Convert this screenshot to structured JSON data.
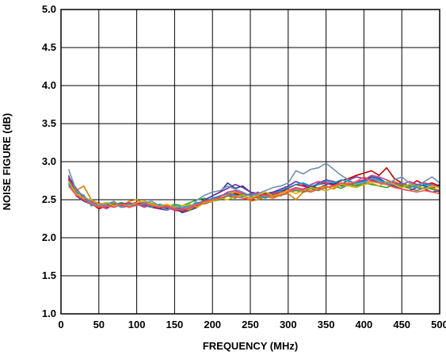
{
  "chart_data": {
    "type": "line",
    "title": "",
    "xlabel": "FREQUENCY (MHz)",
    "ylabel": "NOISE FIGURE (dB)",
    "xlim": [
      0,
      500
    ],
    "ylim": [
      1.0,
      5.0
    ],
    "xticks": [
      "0",
      "50",
      "100",
      "150",
      "200",
      "250",
      "300",
      "350",
      "400",
      "450",
      "500"
    ],
    "yticks": [
      "1.0",
      "1.5",
      "2.0",
      "2.5",
      "3.0",
      "3.5",
      "4.0",
      "4.5",
      "5.0"
    ],
    "grid": true,
    "legend": "none",
    "x": [
      10,
      20,
      30,
      40,
      50,
      60,
      70,
      80,
      90,
      100,
      110,
      120,
      130,
      140,
      150,
      160,
      170,
      180,
      190,
      200,
      210,
      220,
      230,
      240,
      250,
      260,
      270,
      280,
      290,
      300,
      310,
      320,
      330,
      340,
      350,
      360,
      370,
      380,
      390,
      400,
      410,
      420,
      430,
      440,
      450,
      460,
      470,
      480,
      490,
      500
    ],
    "series": [
      {
        "color": "#c00000",
        "values": [
          2.78,
          2.6,
          2.55,
          2.45,
          2.38,
          2.42,
          2.45,
          2.4,
          2.42,
          2.45,
          2.44,
          2.4,
          2.38,
          2.42,
          2.36,
          2.35,
          2.38,
          2.42,
          2.45,
          2.48,
          2.52,
          2.55,
          2.58,
          2.55,
          2.52,
          2.55,
          2.58,
          2.56,
          2.6,
          2.65,
          2.7,
          2.68,
          2.66,
          2.7,
          2.72,
          2.7,
          2.75,
          2.78,
          2.82,
          2.85,
          2.88,
          2.82,
          2.92,
          2.78,
          2.72,
          2.68,
          2.75,
          2.7,
          2.72,
          2.68
        ]
      },
      {
        "color": "#1f3f9f",
        "values": [
          2.8,
          2.65,
          2.52,
          2.48,
          2.42,
          2.45,
          2.42,
          2.44,
          2.4,
          2.43,
          2.46,
          2.42,
          2.4,
          2.38,
          2.4,
          2.33,
          2.36,
          2.4,
          2.5,
          2.55,
          2.6,
          2.72,
          2.65,
          2.68,
          2.6,
          2.58,
          2.55,
          2.6,
          2.62,
          2.6,
          2.64,
          2.62,
          2.68,
          2.65,
          2.7,
          2.72,
          2.68,
          2.7,
          2.72,
          2.75,
          2.8,
          2.78,
          2.72,
          2.7,
          2.68,
          2.66,
          2.7,
          2.68,
          2.65,
          2.7
        ]
      },
      {
        "color": "#e07b00",
        "values": [
          2.75,
          2.62,
          2.68,
          2.5,
          2.45,
          2.44,
          2.46,
          2.42,
          2.48,
          2.5,
          2.45,
          2.43,
          2.4,
          2.42,
          2.38,
          2.4,
          2.36,
          2.45,
          2.48,
          2.5,
          2.55,
          2.58,
          2.6,
          2.56,
          2.48,
          2.5,
          2.54,
          2.52,
          2.56,
          2.58,
          2.5,
          2.6,
          2.62,
          2.66,
          2.68,
          2.64,
          2.7,
          2.72,
          2.68,
          2.7,
          2.75,
          2.72,
          2.7,
          2.74,
          2.7,
          2.66,
          2.68,
          2.64,
          2.66,
          2.62
        ]
      },
      {
        "color": "#2e9e2e",
        "values": [
          2.72,
          2.58,
          2.5,
          2.46,
          2.4,
          2.42,
          2.44,
          2.46,
          2.44,
          2.42,
          2.48,
          2.45,
          2.42,
          2.4,
          2.44,
          2.42,
          2.46,
          2.5,
          2.52,
          2.48,
          2.5,
          2.55,
          2.52,
          2.58,
          2.55,
          2.52,
          2.56,
          2.58,
          2.55,
          2.6,
          2.62,
          2.6,
          2.65,
          2.62,
          2.66,
          2.68,
          2.65,
          2.7,
          2.68,
          2.72,
          2.7,
          2.68,
          2.66,
          2.7,
          2.68,
          2.65,
          2.62,
          2.66,
          2.64,
          2.6
        ]
      },
      {
        "color": "#7030a0",
        "values": [
          2.82,
          2.55,
          2.48,
          2.44,
          2.46,
          2.4,
          2.42,
          2.45,
          2.43,
          2.47,
          2.44,
          2.42,
          2.38,
          2.36,
          2.4,
          2.37,
          2.4,
          2.44,
          2.5,
          2.55,
          2.6,
          2.65,
          2.7,
          2.66,
          2.6,
          2.56,
          2.58,
          2.6,
          2.64,
          2.68,
          2.74,
          2.7,
          2.66,
          2.72,
          2.76,
          2.74,
          2.7,
          2.76,
          2.8,
          2.78,
          2.76,
          2.74,
          2.7,
          2.68,
          2.64,
          2.62,
          2.66,
          2.64,
          2.6,
          2.62
        ]
      },
      {
        "color": "#00a0c0",
        "values": [
          2.7,
          2.6,
          2.56,
          2.42,
          2.44,
          2.46,
          2.44,
          2.4,
          2.45,
          2.44,
          2.42,
          2.4,
          2.44,
          2.42,
          2.38,
          2.4,
          2.42,
          2.46,
          2.48,
          2.52,
          2.55,
          2.58,
          2.56,
          2.54,
          2.58,
          2.55,
          2.52,
          2.58,
          2.62,
          2.66,
          2.7,
          2.72,
          2.68,
          2.7,
          2.74,
          2.72,
          2.76,
          2.74,
          2.72,
          2.74,
          2.78,
          2.76,
          2.72,
          2.7,
          2.72,
          2.68,
          2.66,
          2.7,
          2.68,
          2.66
        ]
      },
      {
        "color": "#c83c8c",
        "values": [
          2.76,
          2.64,
          2.54,
          2.48,
          2.42,
          2.38,
          2.44,
          2.42,
          2.46,
          2.44,
          2.4,
          2.44,
          2.42,
          2.4,
          2.36,
          2.38,
          2.4,
          2.42,
          2.46,
          2.5,
          2.54,
          2.6,
          2.62,
          2.58,
          2.56,
          2.6,
          2.55,
          2.58,
          2.6,
          2.62,
          2.66,
          2.64,
          2.7,
          2.74,
          2.72,
          2.68,
          2.72,
          2.7,
          2.74,
          2.76,
          2.82,
          2.8,
          2.76,
          2.72,
          2.7,
          2.74,
          2.7,
          2.72,
          2.7,
          2.66
        ]
      },
      {
        "color": "#d4b000",
        "values": [
          2.74,
          2.58,
          2.52,
          2.5,
          2.44,
          2.46,
          2.42,
          2.44,
          2.42,
          2.46,
          2.48,
          2.44,
          2.42,
          2.44,
          2.4,
          2.42,
          2.44,
          2.4,
          2.46,
          2.48,
          2.52,
          2.5,
          2.54,
          2.56,
          2.52,
          2.56,
          2.6,
          2.55,
          2.58,
          2.62,
          2.58,
          2.62,
          2.66,
          2.64,
          2.62,
          2.66,
          2.7,
          2.68,
          2.66,
          2.7,
          2.72,
          2.68,
          2.74,
          2.7,
          2.66,
          2.7,
          2.68,
          2.64,
          2.68,
          2.66
        ]
      },
      {
        "color": "#7090b0",
        "values": [
          2.9,
          2.62,
          2.55,
          2.46,
          2.42,
          2.44,
          2.48,
          2.4,
          2.44,
          2.42,
          2.46,
          2.48,
          2.42,
          2.36,
          2.42,
          2.4,
          2.38,
          2.5,
          2.56,
          2.6,
          2.62,
          2.68,
          2.64,
          2.6,
          2.55,
          2.58,
          2.62,
          2.66,
          2.68,
          2.72,
          2.88,
          2.84,
          2.9,
          2.92,
          2.98,
          2.9,
          2.82,
          2.76,
          2.7,
          2.72,
          2.78,
          2.74,
          2.7,
          2.76,
          2.8,
          2.72,
          2.68,
          2.74,
          2.8,
          2.72
        ]
      },
      {
        "color": "#ff5050",
        "values": [
          2.68,
          2.56,
          2.5,
          2.44,
          2.4,
          2.42,
          2.4,
          2.44,
          2.4,
          2.43,
          2.45,
          2.42,
          2.4,
          2.42,
          2.38,
          2.36,
          2.4,
          2.44,
          2.48,
          2.5,
          2.52,
          2.56,
          2.54,
          2.52,
          2.5,
          2.54,
          2.56,
          2.54,
          2.56,
          2.6,
          2.64,
          2.62,
          2.6,
          2.64,
          2.66,
          2.68,
          2.72,
          2.7,
          2.74,
          2.8,
          2.74,
          2.72,
          2.7,
          2.66,
          2.64,
          2.62,
          2.6,
          2.62,
          2.6,
          2.58
        ]
      }
    ]
  }
}
